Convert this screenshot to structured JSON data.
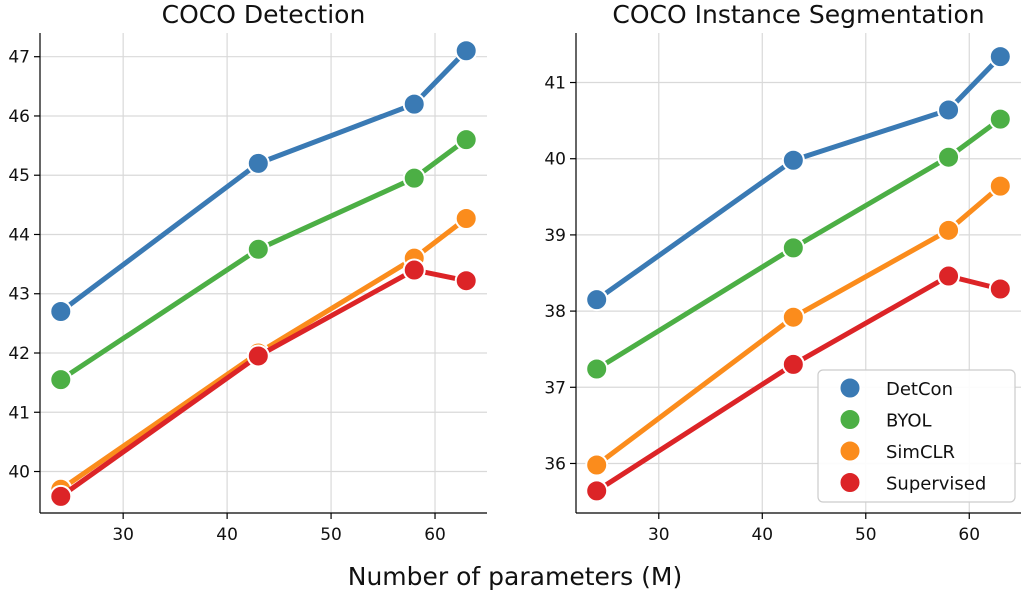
{
  "figure": {
    "xlabel": "Number of parameters (M)"
  },
  "colors": {
    "DetCon": "#3a7ab4",
    "BYOL": "#4caf45",
    "SimCLR": "#fb8c1c",
    "Supervised": "#dc2427"
  },
  "chart_data": [
    {
      "type": "line",
      "title": "COCO Detection",
      "xlabel": "",
      "ylabel": "",
      "x": [
        24,
        43,
        58,
        63
      ],
      "xlim": [
        22,
        65
      ],
      "ylim": [
        39.3,
        47.4
      ],
      "xticks": [
        30,
        40,
        50,
        60
      ],
      "yticks": [
        40,
        41,
        42,
        43,
        44,
        45,
        46,
        47
      ],
      "grid": true,
      "series": [
        {
          "name": "DetCon",
          "values": [
            42.7,
            45.2,
            46.2,
            47.1
          ]
        },
        {
          "name": "BYOL",
          "values": [
            41.55,
            43.75,
            44.95,
            45.6
          ]
        },
        {
          "name": "SimCLR",
          "values": [
            39.7,
            42.0,
            43.6,
            44.27
          ]
        },
        {
          "name": "Supervised",
          "values": [
            39.58,
            41.95,
            43.4,
            43.22
          ]
        }
      ]
    },
    {
      "type": "line",
      "title": "COCO Instance Segmentation",
      "xlabel": "",
      "ylabel": "",
      "x": [
        24,
        43,
        58,
        63
      ],
      "xlim": [
        22,
        65
      ],
      "ylim": [
        35.35,
        41.65
      ],
      "xticks": [
        30,
        40,
        50,
        60
      ],
      "yticks": [
        36,
        37,
        38,
        39,
        40,
        41
      ],
      "grid": true,
      "legend": "bottom-right",
      "series": [
        {
          "name": "DetCon",
          "values": [
            38.15,
            39.98,
            40.64,
            41.34
          ]
        },
        {
          "name": "BYOL",
          "values": [
            37.24,
            38.83,
            40.02,
            40.52
          ]
        },
        {
          "name": "SimCLR",
          "values": [
            35.98,
            37.92,
            39.06,
            39.64
          ]
        },
        {
          "name": "Supervised",
          "values": [
            35.64,
            37.3,
            38.46,
            38.29
          ]
        }
      ]
    }
  ]
}
